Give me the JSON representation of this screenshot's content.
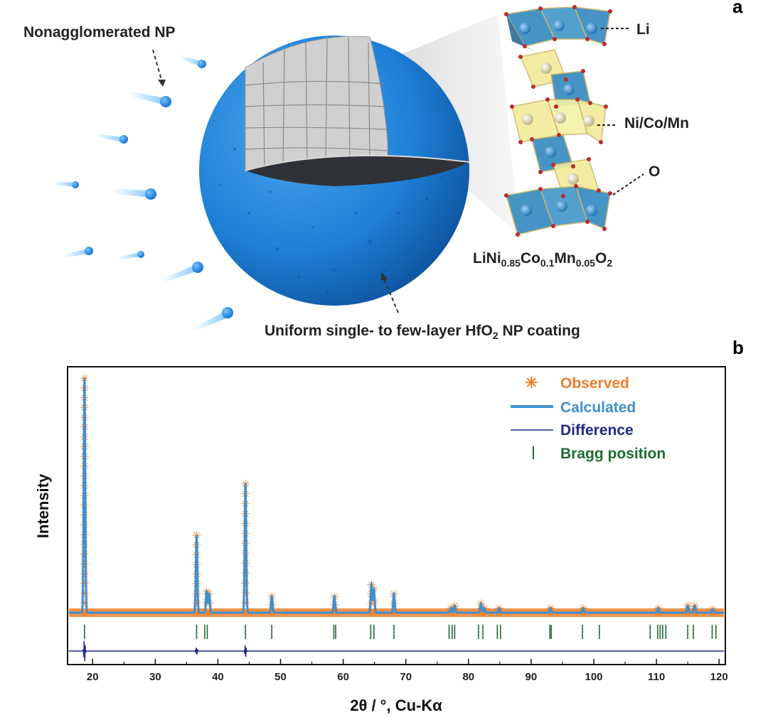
{
  "panel_a": {
    "letter": "a",
    "nonagglomerated_label": "Nonagglomerated NP",
    "coating_label": "Uniform single- to few-layer HfO",
    "coating_sub": "2",
    "coating_tail": " NP coating",
    "li_label": "Li",
    "tm_label": "Ni/Co/Mn",
    "o_label": "O",
    "formula": {
      "p1": "LiNi",
      "s1": "0.85",
      "p2": "Co",
      "s2": "0.1",
      "p3": "Mn",
      "s3": "0.05",
      "p4": "O",
      "s4": "2"
    },
    "colors": {
      "sphere": "#1e7fd6",
      "interior": "#c9c9c9",
      "octahedron_li": "#3d8fc2",
      "octahedron_tm": "#f2ec9a",
      "oxygen": "#c0282d"
    }
  },
  "panel_b": {
    "letter": "b",
    "legend": {
      "observed": "Observed",
      "calculated": "Calculated",
      "difference": "Difference",
      "bragg": "Bragg position"
    },
    "colors": {
      "observed": "#f07f2a",
      "calculated": "#3f8fcf",
      "difference": "#1f2a8a",
      "bragg": "#1d6b32"
    }
  },
  "chart_data": {
    "type": "line",
    "title": "",
    "xlabel": "2θ / °, Cu-Kα",
    "ylabel": "Intensity",
    "xlim": [
      16,
      121
    ],
    "xticks": [
      20,
      30,
      40,
      50,
      60,
      70,
      80,
      90,
      100,
      110,
      120
    ],
    "y_units": "relative intensity (no ticks shown)",
    "baseline": 0.055,
    "peaks": [
      {
        "x": 18.7,
        "h": 1.0
      },
      {
        "x": 36.6,
        "h": 0.33
      },
      {
        "x": 38.2,
        "h": 0.09
      },
      {
        "x": 38.6,
        "h": 0.08
      },
      {
        "x": 44.4,
        "h": 0.55
      },
      {
        "x": 48.6,
        "h": 0.07
      },
      {
        "x": 58.6,
        "h": 0.07
      },
      {
        "x": 64.5,
        "h": 0.12
      },
      {
        "x": 64.9,
        "h": 0.1
      },
      {
        "x": 68.1,
        "h": 0.08
      },
      {
        "x": 77.2,
        "h": 0.02
      },
      {
        "x": 77.8,
        "h": 0.03
      },
      {
        "x": 82.0,
        "h": 0.04
      },
      {
        "x": 82.5,
        "h": 0.02
      },
      {
        "x": 84.9,
        "h": 0.02
      },
      {
        "x": 93.1,
        "h": 0.02
      },
      {
        "x": 98.3,
        "h": 0.02
      },
      {
        "x": 110.3,
        "h": 0.02
      },
      {
        "x": 115.0,
        "h": 0.03
      },
      {
        "x": 116.1,
        "h": 0.03
      },
      {
        "x": 119.0,
        "h": 0.015
      }
    ],
    "bragg_positions": [
      18.7,
      36.6,
      37.9,
      38.3,
      44.4,
      48.6,
      58.5,
      58.8,
      64.4,
      64.9,
      68.1,
      76.9,
      77.4,
      77.8,
      81.6,
      82.3,
      84.6,
      85.1,
      93.0,
      93.2,
      98.2,
      100.9,
      109.0,
      110.2,
      110.6,
      111.0,
      111.5,
      115.0,
      115.9,
      118.9,
      119.5
    ],
    "series": [
      {
        "name": "Observed",
        "style": "star markers"
      },
      {
        "name": "Calculated",
        "style": "line"
      },
      {
        "name": "Difference",
        "style": "thin line"
      },
      {
        "name": "Bragg position",
        "style": "vertical ticks"
      }
    ],
    "legend_position": "top-right",
    "grid": false
  }
}
